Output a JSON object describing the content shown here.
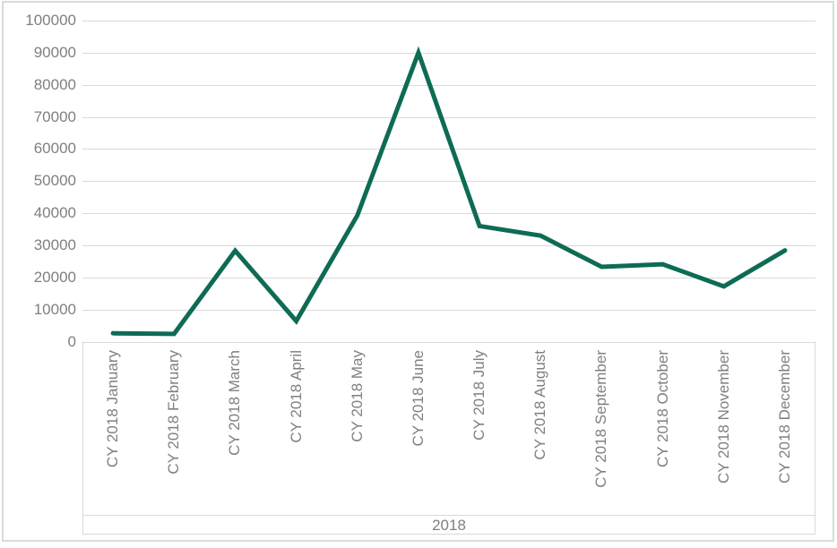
{
  "chart_data": {
    "type": "line",
    "title": "",
    "categories": [
      "CY 2018 January",
      "CY 2018 February",
      "CY 2018 March",
      "CY 2018 April",
      "CY 2018 May",
      "CY 2018 June",
      "CY 2018 July",
      "CY 2018 August",
      "CY 2018 September",
      "CY 2018 October",
      "CY 2018 November",
      "CY 2018 December"
    ],
    "values": [
      2600,
      2400,
      28300,
      6400,
      39300,
      90000,
      36000,
      33000,
      23300,
      24100,
      17200,
      28400
    ],
    "x_group_label": "2018",
    "xlabel": "2018",
    "ylabel": "",
    "ylim": [
      0,
      100000
    ],
    "ytick_step": 10000,
    "ytick_labels": [
      "0",
      "10000",
      "20000",
      "30000",
      "40000",
      "50000",
      "60000",
      "70000",
      "80000",
      "90000",
      "100000"
    ],
    "grid": true,
    "legend": false,
    "colors": {
      "line": "#0e6b55",
      "axis_text": "#808080",
      "gridline": "#d9d9d9",
      "band_line": "#d9d9d9",
      "frame": "#dadada",
      "background": "#ffffff"
    }
  }
}
